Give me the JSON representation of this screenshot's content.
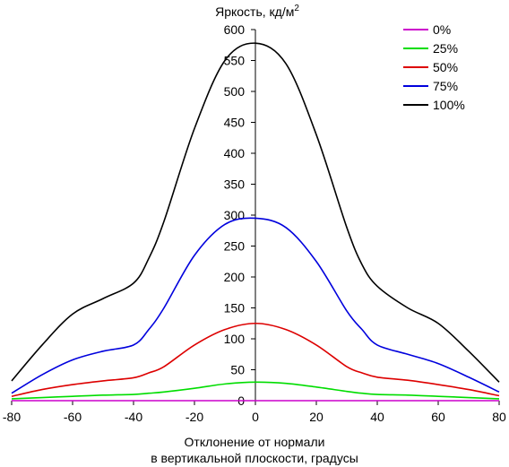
{
  "chart_data": {
    "type": "line",
    "title": "",
    "ylabel": "Яркость, кд/м",
    "ylabel_superscript": "2",
    "xlabel_lines": [
      "Отклонение от нормали",
      "в вертикальной плоскости, градусы"
    ],
    "xlim": [
      -80,
      80
    ],
    "ylim": [
      0,
      600
    ],
    "x_ticks": [
      -80,
      -60,
      -40,
      -20,
      0,
      20,
      40,
      60,
      80
    ],
    "y_ticks": [
      0,
      50,
      100,
      150,
      200,
      250,
      300,
      350,
      400,
      450,
      500,
      550,
      600
    ],
    "grid": false,
    "legend_position": "top-right",
    "x": [
      -80,
      -70,
      -60,
      -50,
      -40,
      -35,
      -30,
      -20,
      -10,
      0,
      10,
      20,
      30,
      35,
      40,
      50,
      60,
      70,
      80
    ],
    "series": [
      {
        "name": "0%",
        "color": "#cc00cc",
        "values": [
          0,
          0,
          0,
          0,
          0,
          0,
          0,
          0,
          0,
          0,
          0,
          0,
          0,
          0,
          0,
          0,
          0,
          0,
          0
        ]
      },
      {
        "name": "25%",
        "color": "#00dd00",
        "values": [
          3,
          5,
          7,
          9,
          10,
          12,
          14,
          20,
          27,
          30,
          28,
          22,
          15,
          12,
          10,
          9,
          7,
          5,
          3
        ]
      },
      {
        "name": "50%",
        "color": "#dd0000",
        "values": [
          7,
          18,
          26,
          32,
          37,
          45,
          55,
          90,
          115,
          125,
          115,
          90,
          55,
          45,
          38,
          33,
          26,
          18,
          8
        ]
      },
      {
        "name": "75%",
        "color": "#0000dd",
        "values": [
          12,
          42,
          66,
          80,
          90,
          115,
          150,
          235,
          285,
          295,
          280,
          225,
          145,
          115,
          90,
          75,
          60,
          38,
          14
        ]
      },
      {
        "name": "100%",
        "color": "#000000",
        "values": [
          32,
          90,
          140,
          165,
          190,
          230,
          290,
          440,
          550,
          578,
          545,
          430,
          280,
          220,
          185,
          150,
          125,
          80,
          30
        ]
      }
    ]
  }
}
